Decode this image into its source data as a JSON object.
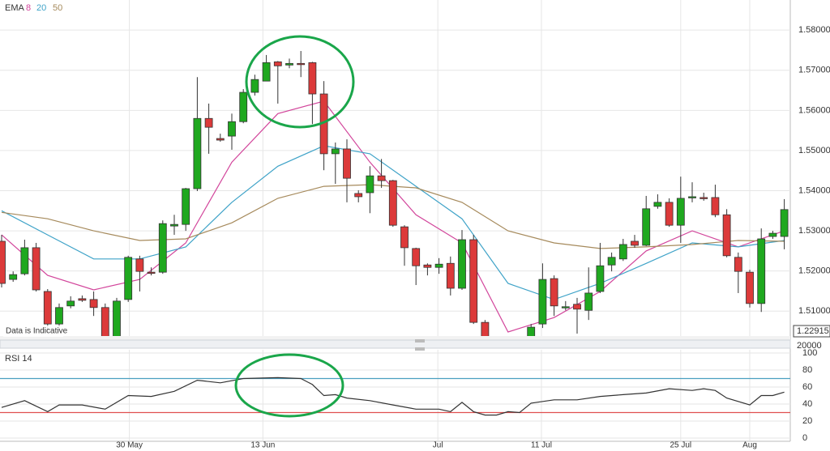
{
  "chart_data": [
    {
      "type": "candlestick",
      "title": "EMA",
      "categories": [
        null,
        null,
        null,
        null,
        null,
        null,
        null,
        null,
        null,
        null,
        null,
        null,
        null,
        null,
        null,
        null,
        null,
        null,
        null,
        null,
        null,
        null,
        null,
        null,
        null,
        null,
        null,
        null,
        null,
        null,
        null,
        null,
        null,
        null,
        null,
        null,
        null,
        null,
        null,
        null,
        null,
        null,
        null,
        null,
        null,
        null,
        null,
        null,
        null,
        null,
        null,
        null,
        null,
        null,
        null,
        null,
        null,
        null,
        null,
        null,
        null,
        null,
        null,
        null,
        null,
        null,
        null,
        null,
        null
      ],
      "open": [
        1.5274,
        1.5179,
        1.5193,
        1.5258,
        1.5149,
        1.5068,
        1.5113,
        1.5131,
        1.5129,
        1.5109,
        1.5035,
        1.5129,
        1.523,
        1.5197,
        1.5197,
        1.5312,
        1.5316,
        1.5405,
        1.558,
        1.553,
        1.5536,
        1.5572,
        1.5645,
        1.5673,
        1.5721,
        1.5713,
        1.5717,
        1.5719,
        1.5641,
        1.5492,
        1.5504,
        1.5393,
        1.5395,
        1.5437,
        1.5425,
        1.531,
        1.5256,
        1.5215,
        1.5209,
        1.5219,
        1.5157,
        1.5278,
        1.5072,
        null,
        null,
        null,
        1.503,
        1.5068,
        1.5181,
        1.5109,
        1.5117,
        1.5102,
        1.5149,
        1.5215,
        1.523,
        1.5274,
        1.5264,
        1.5361,
        1.5371,
        1.5314,
        1.5383,
        1.5383,
        1.5383,
        1.534,
        1.5234,
        1.5197,
        1.5119,
        1.5286,
        1.5286
      ],
      "high": [
        1.529,
        1.5199,
        1.5278,
        1.527,
        1.5155,
        1.5119,
        1.5137,
        1.5139,
        1.5149,
        1.5119,
        1.5133,
        1.5238,
        1.5238,
        1.5209,
        1.5326,
        1.534,
        1.5407,
        1.5683,
        1.5617,
        1.5542,
        1.5592,
        1.5653,
        1.5689,
        1.5738,
        1.5723,
        1.5729,
        1.5748,
        1.5721,
        1.5673,
        1.552,
        1.5528,
        1.5401,
        1.5461,
        1.5479,
        1.5427,
        1.5314,
        1.5258,
        1.5219,
        1.5232,
        1.5236,
        1.5302,
        1.529,
        1.5078,
        null,
        null,
        null,
        1.5068,
        1.5219,
        1.5189,
        1.5125,
        1.5133,
        1.5209,
        1.527,
        1.5246,
        1.528,
        1.529,
        1.5387,
        1.5391,
        1.5381,
        1.5435,
        1.5421,
        1.5395,
        1.5415,
        1.5354,
        1.5246,
        1.5203,
        1.5306,
        1.53,
        1.5379
      ],
      "low": [
        1.5159,
        1.5173,
        1.5189,
        1.5149,
        1.5048,
        1.5048,
        1.5107,
        1.5123,
        1.5088,
        1.5018,
        1.503,
        1.5123,
        1.5149,
        1.5189,
        1.5193,
        1.529,
        1.53,
        1.5399,
        1.5492,
        1.5522,
        1.5502,
        1.5568,
        1.5637,
        1.5673,
        1.5617,
        1.5705,
        1.5683,
        1.5566,
        1.5451,
        1.5417,
        1.5371,
        1.5371,
        1.5344,
        1.5407,
        1.531,
        1.5213,
        1.5165,
        1.5189,
        1.5193,
        1.5139,
        1.5153,
        1.5068,
        1.499,
        null,
        null,
        null,
        1.5025,
        1.5058,
        1.5088,
        1.5102,
        1.5044,
        1.5078,
        1.5145,
        1.5199,
        1.5225,
        1.5258,
        1.5262,
        1.5355,
        1.531,
        1.527,
        1.5371,
        1.5375,
        1.5334,
        1.5234,
        1.5145,
        1.5109,
        1.5098,
        1.528,
        1.5254
      ],
      "close": [
        1.5169,
        1.5191,
        1.5258,
        1.5153,
        1.5068,
        1.5109,
        1.5125,
        1.5127,
        1.5109,
        1.503,
        1.5125,
        1.5234,
        1.5199,
        1.5195,
        1.5318,
        1.5316,
        1.5405,
        1.558,
        1.5558,
        1.5526,
        1.5572,
        1.5645,
        1.5677,
        1.5719,
        1.5711,
        1.5717,
        1.5715,
        1.5641,
        1.5492,
        1.5504,
        1.5431,
        1.5385,
        1.5437,
        1.5425,
        1.5314,
        1.5258,
        1.5213,
        1.5209,
        1.5217,
        1.5157,
        1.5278,
        1.5072,
        1.5,
        null,
        null,
        null,
        1.506,
        1.5179,
        1.5113,
        1.5111,
        1.5105,
        1.5145,
        1.5213,
        1.5234,
        1.5266,
        1.5264,
        1.5355,
        1.5371,
        1.5314,
        1.5381,
        1.5385,
        1.5381,
        1.534,
        1.5238,
        1.5199,
        1.5119,
        1.528,
        1.5294,
        1.5353
      ],
      "up_color": "#1fa81f",
      "down_color": "#dc3a3a",
      "series": [
        {
          "name": "8",
          "color": "#d2459b",
          "x": [
            0,
            4,
            8,
            12,
            16,
            20,
            24,
            28,
            32,
            36,
            40,
            44,
            48,
            52,
            56,
            60,
            64,
            68
          ],
          "values": [
            1.529,
            1.5189,
            1.5153,
            1.5179,
            1.527,
            1.5471,
            1.5592,
            1.5623,
            1.5471,
            1.534,
            1.527,
            1.5048,
            1.5084,
            1.5149,
            1.525,
            1.53,
            1.526,
            1.53
          ]
        },
        {
          "name": "20",
          "color": "#3fa3c8",
          "x": [
            0,
            4,
            8,
            12,
            16,
            20,
            24,
            28,
            32,
            36,
            40,
            44,
            48,
            52,
            56,
            60,
            64,
            68
          ],
          "values": [
            1.535,
            1.529,
            1.523,
            1.523,
            1.526,
            1.5371,
            1.5461,
            1.5512,
            1.5492,
            1.5411,
            1.533,
            1.5169,
            1.5129,
            1.5169,
            1.5219,
            1.527,
            1.526,
            1.5276
          ]
        },
        {
          "name": "50",
          "color": "#a68a5c",
          "x": [
            0,
            4,
            8,
            12,
            16,
            20,
            24,
            28,
            32,
            36,
            40,
            44,
            48,
            52,
            56,
            60,
            64,
            68
          ],
          "values": [
            1.5346,
            1.533,
            1.53,
            1.5276,
            1.528,
            1.532,
            1.5381,
            1.5411,
            1.5415,
            1.5407,
            1.5371,
            1.53,
            1.527,
            1.5256,
            1.526,
            1.5266,
            1.5276,
            1.5274
          ]
        }
      ],
      "xlim": [
        -0.14,
        68.52
      ],
      "xticks": [
        {
          "value": 11.1,
          "label": "30 May"
        },
        {
          "value": 22.7,
          "label": "13 Jun"
        },
        {
          "value": 37.9,
          "label": "Jul"
        },
        {
          "value": 46.9,
          "label": "11 Jul"
        },
        {
          "value": 59.0,
          "label": "25 Jul"
        },
        {
          "value": 65.0,
          "label": "Aug"
        }
      ],
      "ylim": [
        1.5038,
        1.5875
      ],
      "yticks": [
        {
          "value": 1.51,
          "label": "1.51000"
        },
        {
          "value": 1.52,
          "label": "1.52000"
        },
        {
          "value": 1.53,
          "label": "1.53000"
        },
        {
          "value": 1.54,
          "label": "1.54000"
        },
        {
          "value": 1.55,
          "label": "1.55000"
        },
        {
          "value": 1.56,
          "label": "1.56000"
        },
        {
          "value": 1.57,
          "label": "1.57000"
        },
        {
          "value": 1.58,
          "label": "1.58000"
        }
      ],
      "grid": true,
      "note": "Data is Indicative",
      "price_tag": 1.22915,
      "volume_tick": 20000
    },
    {
      "type": "line",
      "title": "RSI 14",
      "series": [
        {
          "color": "#333333",
          "x": [
            0,
            2,
            4,
            5,
            7,
            9,
            11,
            13,
            15,
            17,
            19,
            21,
            24,
            26,
            27,
            28,
            29,
            30,
            32,
            34,
            36,
            38,
            39,
            40,
            41,
            42,
            43,
            44,
            45,
            46,
            48,
            50,
            52,
            54,
            56,
            58,
            60,
            61,
            62,
            63,
            65,
            66,
            67,
            68
          ],
          "values": [
            36,
            44,
            31,
            39,
            39,
            34,
            50,
            49,
            55,
            68,
            65,
            70,
            71,
            70,
            63,
            50,
            51,
            47,
            44,
            39,
            34,
            34,
            31,
            42,
            31,
            27,
            27,
            31,
            30,
            41,
            45,
            45,
            49,
            51,
            53,
            58,
            56,
            58,
            56,
            47,
            39,
            50,
            50,
            54
          ]
        }
      ],
      "reference_lines": [
        {
          "value": 70,
          "color": "#4a9fc0"
        },
        {
          "value": 30,
          "color": "#e05050"
        }
      ],
      "xlim": [
        -0.14,
        68.52
      ],
      "ylim": [
        0,
        100
      ],
      "yticks": [
        0,
        20,
        40,
        60,
        80,
        100
      ],
      "grid": true
    }
  ]
}
